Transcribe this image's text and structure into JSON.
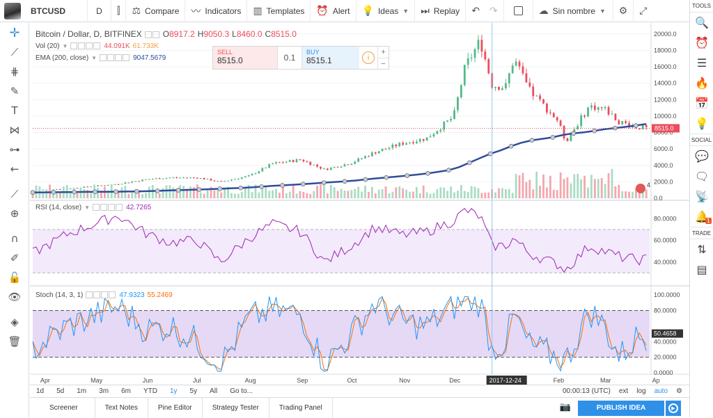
{
  "toolbar": {
    "symbol": "BTCUSD",
    "interval": "D",
    "compare": "Compare",
    "indicators": "Indicators",
    "templates": "Templates",
    "alert": "Alert",
    "ideas": "Ideas",
    "replay": "Replay",
    "layout_name": "Sin nombre"
  },
  "left_tools": [
    "crosshair-icon",
    "trend-line-icon",
    "fib-icon",
    "brush-icon",
    "text-icon",
    "pattern-icon",
    "prediction-icon",
    "back-arrow-icon",
    "ruler-icon",
    "zoom-icon",
    "magnet-icon",
    "lock-drawing-icon",
    "lock-icon",
    "eye-icon",
    "layers-icon",
    "trash-icon"
  ],
  "right_panel": {
    "tools_label": "TOOLS",
    "social_label": "SOCIAL",
    "trade_label": "TRADE",
    "notification_count": "1"
  },
  "main_legend": {
    "title": "Bitcoin / Dollar, D, BITFINEX",
    "o_label": "O",
    "o": "8917.2",
    "h_label": "H",
    "h": "9050.3",
    "l_label": "L",
    "l": "8460.0",
    "c_label": "C",
    "c": "8515.0"
  },
  "vol_legend": {
    "label": "Vol (20)",
    "v1": "44.091K",
    "v2": "61.733K"
  },
  "ema_legend": {
    "label": "EMA (200, close)",
    "value": "9047.5679"
  },
  "trade": {
    "sell_label": "SELL",
    "sell_price": "8515.0",
    "spread": "0.1",
    "buy_label": "BUY",
    "buy_price": "8515.1",
    "plus": "+",
    "minus": "−"
  },
  "rsi_legend": {
    "label": "RSI (14, close)",
    "value": "42.7265"
  },
  "stoch_legend": {
    "label": "Stoch (14, 3, 1)",
    "k": "47.9323",
    "d": "55.2469"
  },
  "price_axis": [
    "20000.0",
    "18000.0",
    "16000.0",
    "14000.0",
    "12000.0",
    "10000.0",
    "8000.0",
    "6000.0",
    "4000.0",
    "2000.0",
    "0.0"
  ],
  "last_price_tag": "8515.0",
  "rsi_axis": [
    "80.0000",
    "60.0000",
    "40.0000"
  ],
  "stoch_axis": [
    "100.0000",
    "80.0000",
    "40.0000",
    "20.0000",
    "0.0000"
  ],
  "stoch_last_tag": "50.4658",
  "time_axis": [
    "Apr",
    "May",
    "Jun",
    "Jul",
    "Aug",
    "Sep",
    "Oct",
    "Nov",
    "Dec",
    "Jan",
    "Feb",
    "Mar",
    "Ap"
  ],
  "crosshair_date": "2017-12-24",
  "flag_count": "4",
  "ranges": [
    "1d",
    "5d",
    "1m",
    "3m",
    "6m",
    "YTD",
    "1y",
    "5y",
    "All",
    "Go to..."
  ],
  "active_range": "1y",
  "status": {
    "time": "00:00:13 (UTC)",
    "ext": "ext",
    "log": "log",
    "auto": "auto"
  },
  "bottom_tabs": [
    "Screener",
    "Text Notes",
    "Pine Editor",
    "Strategy Tester",
    "Trading Panel"
  ],
  "publish_label": "PUBLISH IDEA",
  "colors": {
    "up": "#53b987",
    "down": "#eb4d5c",
    "ema": "#2f4c9b",
    "rsi": "#9c27b0",
    "stoch_k": "#2196f3",
    "stoch_d": "#ff6d00",
    "accent": "#2f90e8",
    "band": "#e6d9f6"
  },
  "chart_data": {
    "type": "candlestick",
    "title": "Bitcoin / Dollar, D, BITFINEX",
    "x": [
      "2017-03-25",
      "2017-04-15",
      "2017-05-15",
      "2017-06-01",
      "2017-06-15",
      "2017-07-01",
      "2017-07-15",
      "2017-08-01",
      "2017-08-15",
      "2017-09-01",
      "2017-09-15",
      "2017-10-01",
      "2017-10-15",
      "2017-11-01",
      "2017-11-15",
      "2017-12-01",
      "2017-12-08",
      "2017-12-17",
      "2017-12-24",
      "2018-01-01",
      "2018-01-06",
      "2018-01-15",
      "2018-02-01",
      "2018-02-06",
      "2018-02-20",
      "2018-03-01",
      "2018-03-10",
      "2018-03-20",
      "2018-03-26"
    ],
    "close": [
      950,
      1180,
      1750,
      2300,
      2500,
      2500,
      2000,
      2700,
      4200,
      4700,
      3500,
      4300,
      5600,
      6700,
      7300,
      9900,
      16000,
      19200,
      13800,
      13500,
      17000,
      13200,
      9500,
      6900,
      11200,
      10900,
      9300,
      8700,
      8515
    ],
    "ema200": [
      700,
      750,
      800,
      850,
      950,
      1050,
      1150,
      1300,
      1500,
      1700,
      1900,
      2100,
      2400,
      2700,
      3000,
      3500,
      4100,
      4900,
      5500,
      6000,
      6500,
      7000,
      7500,
      7800,
      8100,
      8400,
      8600,
      8850,
      9047.57
    ],
    "rsi": [
      48,
      66,
      83,
      66,
      58,
      60,
      40,
      62,
      75,
      68,
      40,
      55,
      72,
      65,
      68,
      78,
      88,
      82,
      55,
      55,
      62,
      48,
      38,
      33,
      55,
      50,
      45,
      42,
      42.73
    ],
    "stoch_k": [
      30,
      60,
      85,
      55,
      60,
      40,
      10,
      70,
      80,
      75,
      10,
      50,
      90,
      65,
      60,
      85,
      95,
      90,
      30,
      40,
      75,
      35,
      20,
      15,
      80,
      60,
      20,
      45,
      47.93
    ],
    "stoch_d": [
      35,
      55,
      80,
      60,
      55,
      45,
      20,
      65,
      82,
      72,
      20,
      45,
      85,
      70,
      62,
      80,
      92,
      88,
      40,
      45,
      70,
      40,
      25,
      20,
      75,
      65,
      25,
      40,
      55.25
    ],
    "y_range": [
      0,
      21000
    ],
    "rsi_range": [
      20,
      95
    ],
    "stoch_range": [
      0,
      110
    ]
  }
}
